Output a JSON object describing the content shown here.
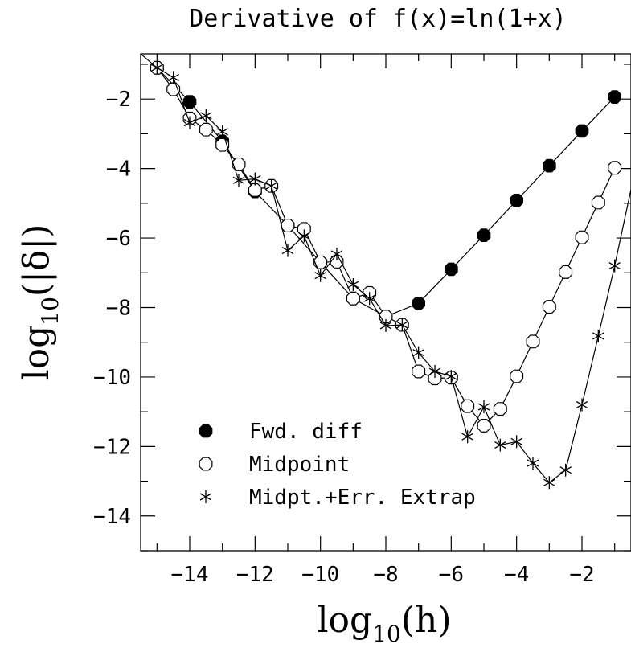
{
  "chart_data": {
    "type": "line",
    "title": "Derivative of f(x)=ln(1+x)",
    "xlabel": {
      "base": "log",
      "sub": "10",
      "arg": "(h)"
    },
    "ylabel": {
      "base": "log",
      "sub": "10",
      "arg": "(|δ|)"
    },
    "xlim": [
      -15.5,
      -0.5
    ],
    "ylim": [
      -15,
      -0.7
    ],
    "xticks": [
      {
        "value": -14,
        "label": "−14"
      },
      {
        "value": -12,
        "label": "−12"
      },
      {
        "value": -10,
        "label": "−10"
      },
      {
        "value": -8,
        "label": "−8"
      },
      {
        "value": -6,
        "label": "−6"
      },
      {
        "value": -4,
        "label": "−4"
      },
      {
        "value": -2,
        "label": "−2"
      }
    ],
    "yticks": [
      {
        "value": -2,
        "label": "−2"
      },
      {
        "value": -4,
        "label": "−4"
      },
      {
        "value": -6,
        "label": "−6"
      },
      {
        "value": -8,
        "label": "−8"
      },
      {
        "value": -10,
        "label": "−10"
      },
      {
        "value": -12,
        "label": "−12"
      },
      {
        "value": -14,
        "label": "−14"
      }
    ],
    "legend_position": "bottom-left",
    "series": [
      {
        "name": "Fwd. diff",
        "marker": "filled-octagon",
        "points": [
          [
            -15,
            -1.1
          ],
          [
            -14,
            -2.08
          ],
          [
            -13,
            -3.22
          ],
          [
            -12,
            -4.66
          ],
          [
            -11,
            -5.64
          ],
          [
            -10,
            -6.7
          ],
          [
            -9,
            -7.74
          ],
          [
            -8,
            -8.26
          ],
          [
            -7,
            -7.88
          ],
          [
            -6,
            -6.9
          ],
          [
            -5,
            -5.92
          ],
          [
            -4,
            -4.92
          ],
          [
            -3,
            -3.92
          ],
          [
            -2,
            -2.92
          ],
          [
            -1,
            -1.94
          ]
        ]
      },
      {
        "name": "Midpoint",
        "marker": "open-octagon",
        "points": [
          [
            -15,
            -1.1
          ],
          [
            -14.5,
            -1.72
          ],
          [
            -14,
            -2.56
          ],
          [
            -13.5,
            -2.88
          ],
          [
            -13,
            -3.32
          ],
          [
            -12.5,
            -3.88
          ],
          [
            -12,
            -4.62
          ],
          [
            -11.5,
            -4.5
          ],
          [
            -11,
            -5.64
          ],
          [
            -10.5,
            -5.74
          ],
          [
            -10,
            -6.7
          ],
          [
            -9.5,
            -6.68
          ],
          [
            -9,
            -7.74
          ],
          [
            -8.5,
            -7.58
          ],
          [
            -8,
            -8.26
          ],
          [
            -7.5,
            -8.5
          ],
          [
            -7,
            -9.84
          ],
          [
            -6.5,
            -10.04
          ],
          [
            -6,
            -10.02
          ],
          [
            -5.5,
            -10.84
          ],
          [
            -5,
            -11.4
          ],
          [
            -4.5,
            -10.92
          ],
          [
            -4,
            -9.98
          ],
          [
            -3.5,
            -8.98
          ],
          [
            -3,
            -7.98
          ],
          [
            -2.5,
            -6.98
          ],
          [
            -2,
            -5.98
          ],
          [
            -1.5,
            -4.98
          ],
          [
            -1,
            -3.98
          ]
        ]
      },
      {
        "name": "Midpt.+Err. Extrap",
        "marker": "asterisk",
        "points": [
          [
            -15.5,
            -0.7
          ],
          [
            -15,
            -1.1
          ],
          [
            -14.5,
            -1.38
          ],
          [
            -14,
            -2.68
          ],
          [
            -13.5,
            -2.48
          ],
          [
            -13,
            -2.94
          ],
          [
            -12.5,
            -4.34
          ],
          [
            -12,
            -4.3
          ],
          [
            -11.5,
            -4.5
          ],
          [
            -11,
            -6.36
          ],
          [
            -10.5,
            -5.94
          ],
          [
            -10,
            -7.08
          ],
          [
            -9.5,
            -6.46
          ],
          [
            -9,
            -7.34
          ],
          [
            -8.5,
            -7.74
          ],
          [
            -8,
            -8.52
          ],
          [
            -7.5,
            -8.5
          ],
          [
            -7,
            -9.3
          ],
          [
            -6.5,
            -9.84
          ],
          [
            -6,
            -9.98
          ],
          [
            -5.5,
            -11.72
          ],
          [
            -5,
            -10.86
          ],
          [
            -4.5,
            -11.96
          ],
          [
            -4,
            -11.86
          ],
          [
            -3.5,
            -12.48
          ],
          [
            -3,
            -13.04
          ],
          [
            -2.5,
            -12.68
          ],
          [
            -2,
            -10.8
          ],
          [
            -1.5,
            -8.82
          ],
          [
            -1,
            -6.8
          ],
          [
            -0.5,
            -4.6
          ]
        ]
      }
    ]
  }
}
